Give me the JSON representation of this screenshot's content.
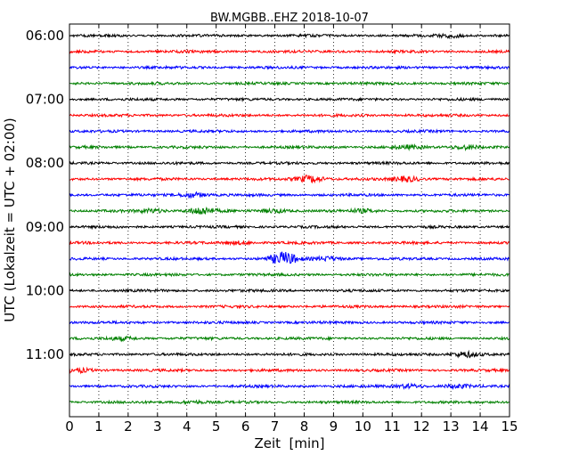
{
  "chart_data": {
    "type": "line",
    "chart_kind": "helicorder (seismogram drum plot)",
    "title": "BW.MGBB..EHZ 2018-10-07",
    "xlabel": "Zeit  [min]",
    "ylabel": "UTC (Lokalzeit = UTC + 02:00)",
    "xlim": [
      0,
      15
    ],
    "x_ticks": [
      "0",
      "1",
      "2",
      "3",
      "4",
      "5",
      "6",
      "7",
      "8",
      "9",
      "10",
      "11",
      "12",
      "13",
      "14",
      "15"
    ],
    "y_ticks": [
      "06:00",
      "07:00",
      "08:00",
      "09:00",
      "10:00",
      "11:00"
    ],
    "grid": "vertical dotted lines at each minute",
    "line_interval_minutes": 15,
    "color_cycle": [
      "#000000",
      "#ff0000",
      "#0000ff",
      "#008000"
    ],
    "series": [
      {
        "start": "06:00",
        "color": "#000000",
        "events": [
          [
            13.0,
            0.5
          ]
        ]
      },
      {
        "start": "06:15",
        "color": "#ff0000",
        "events": []
      },
      {
        "start": "06:30",
        "color": "#0000ff",
        "events": []
      },
      {
        "start": "06:45",
        "color": "#008000",
        "events": []
      },
      {
        "start": "07:00",
        "color": "#000000",
        "events": []
      },
      {
        "start": "07:15",
        "color": "#ff0000",
        "events": []
      },
      {
        "start": "07:30",
        "color": "#0000ff",
        "events": []
      },
      {
        "start": "07:45",
        "color": "#008000",
        "events": [
          [
            11.5,
            0.5
          ],
          [
            13.5,
            0.7
          ]
        ]
      },
      {
        "start": "08:00",
        "color": "#000000",
        "events": []
      },
      {
        "start": "08:15",
        "color": "#ff0000",
        "events": [
          [
            8.2,
            1.2
          ],
          [
            11.5,
            0.8
          ]
        ]
      },
      {
        "start": "08:30",
        "color": "#0000ff",
        "events": [
          [
            4.2,
            0.8
          ]
        ]
      },
      {
        "start": "08:45",
        "color": "#008000",
        "events": [
          [
            2.8,
            0.6
          ],
          [
            4.5,
            1.3
          ],
          [
            7.0,
            0.6
          ],
          [
            10.0,
            0.5
          ]
        ]
      },
      {
        "start": "09:00",
        "color": "#000000",
        "events": []
      },
      {
        "start": "09:15",
        "color": "#ff0000",
        "events": [
          [
            5.8,
            0.5
          ]
        ]
      },
      {
        "start": "09:30",
        "color": "#0000ff",
        "events": [
          [
            7.3,
            2.2
          ],
          [
            8.8,
            0.7
          ]
        ]
      },
      {
        "start": "09:45",
        "color": "#008000",
        "events": []
      },
      {
        "start": "10:00",
        "color": "#000000",
        "events": []
      },
      {
        "start": "10:15",
        "color": "#ff0000",
        "events": []
      },
      {
        "start": "10:30",
        "color": "#0000ff",
        "events": []
      },
      {
        "start": "10:45",
        "color": "#008000",
        "events": [
          [
            1.8,
            0.5
          ]
        ]
      },
      {
        "start": "11:00",
        "color": "#000000",
        "events": [
          [
            13.5,
            0.9
          ]
        ]
      },
      {
        "start": "11:15",
        "color": "#ff0000",
        "events": [
          [
            0.3,
            0.6
          ]
        ]
      },
      {
        "start": "11:30",
        "color": "#0000ff",
        "events": [
          [
            11.6,
            0.6
          ],
          [
            13.2,
            0.5
          ]
        ]
      },
      {
        "start": "11:45",
        "color": "#008000",
        "events": [
          [
            4.2,
            0.4
          ]
        ]
      }
    ]
  }
}
